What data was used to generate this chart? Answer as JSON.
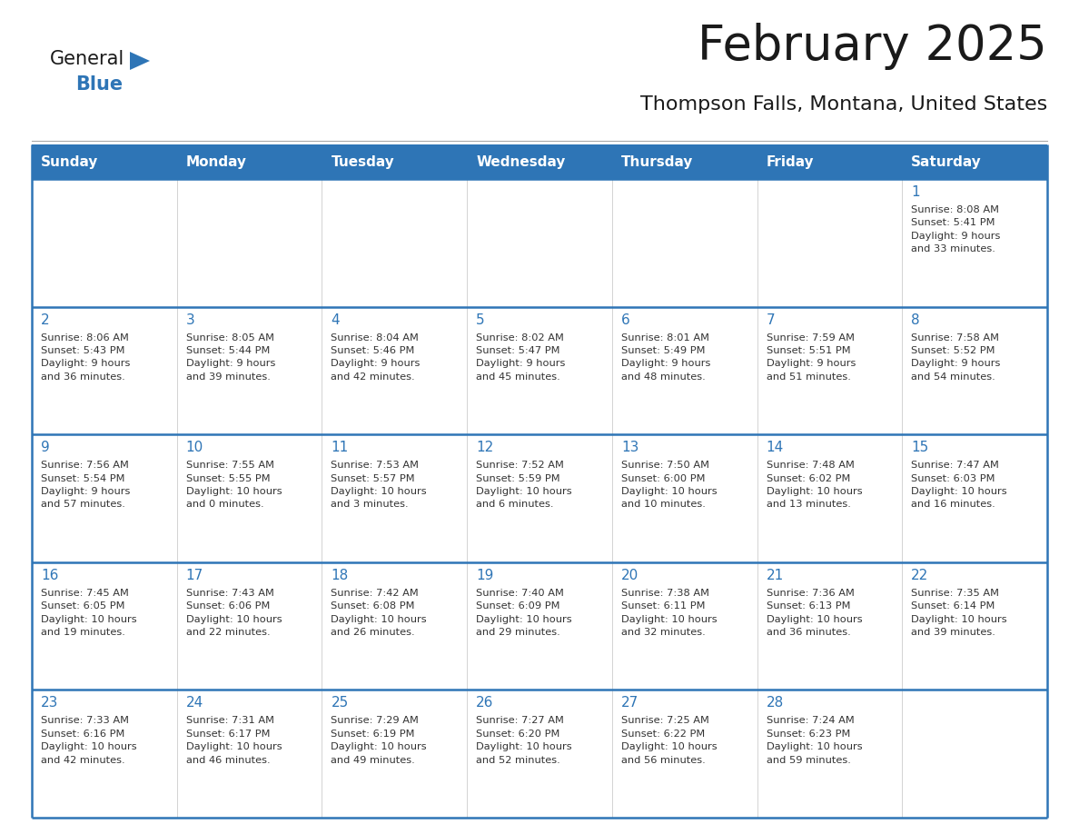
{
  "title": "February 2025",
  "subtitle": "Thompson Falls, Montana, United States",
  "header_bg": "#2E75B6",
  "header_text_color": "#FFFFFF",
  "cell_bg": "#FFFFFF",
  "border_color": "#2E75B6",
  "row_border_color": "#4472A8",
  "day_headers": [
    "Sunday",
    "Monday",
    "Tuesday",
    "Wednesday",
    "Thursday",
    "Friday",
    "Saturday"
  ],
  "title_color": "#1a1a1a",
  "subtitle_color": "#1a1a1a",
  "day_num_color": "#2E75B6",
  "cell_text_color": "#333333",
  "logo_general_color": "#1a1a1a",
  "logo_blue_color": "#2E75B6",
  "weeks": [
    [
      {
        "day": "",
        "info": ""
      },
      {
        "day": "",
        "info": ""
      },
      {
        "day": "",
        "info": ""
      },
      {
        "day": "",
        "info": ""
      },
      {
        "day": "",
        "info": ""
      },
      {
        "day": "",
        "info": ""
      },
      {
        "day": "1",
        "info": "Sunrise: 8:08 AM\nSunset: 5:41 PM\nDaylight: 9 hours\nand 33 minutes."
      }
    ],
    [
      {
        "day": "2",
        "info": "Sunrise: 8:06 AM\nSunset: 5:43 PM\nDaylight: 9 hours\nand 36 minutes."
      },
      {
        "day": "3",
        "info": "Sunrise: 8:05 AM\nSunset: 5:44 PM\nDaylight: 9 hours\nand 39 minutes."
      },
      {
        "day": "4",
        "info": "Sunrise: 8:04 AM\nSunset: 5:46 PM\nDaylight: 9 hours\nand 42 minutes."
      },
      {
        "day": "5",
        "info": "Sunrise: 8:02 AM\nSunset: 5:47 PM\nDaylight: 9 hours\nand 45 minutes."
      },
      {
        "day": "6",
        "info": "Sunrise: 8:01 AM\nSunset: 5:49 PM\nDaylight: 9 hours\nand 48 minutes."
      },
      {
        "day": "7",
        "info": "Sunrise: 7:59 AM\nSunset: 5:51 PM\nDaylight: 9 hours\nand 51 minutes."
      },
      {
        "day": "8",
        "info": "Sunrise: 7:58 AM\nSunset: 5:52 PM\nDaylight: 9 hours\nand 54 minutes."
      }
    ],
    [
      {
        "day": "9",
        "info": "Sunrise: 7:56 AM\nSunset: 5:54 PM\nDaylight: 9 hours\nand 57 minutes."
      },
      {
        "day": "10",
        "info": "Sunrise: 7:55 AM\nSunset: 5:55 PM\nDaylight: 10 hours\nand 0 minutes."
      },
      {
        "day": "11",
        "info": "Sunrise: 7:53 AM\nSunset: 5:57 PM\nDaylight: 10 hours\nand 3 minutes."
      },
      {
        "day": "12",
        "info": "Sunrise: 7:52 AM\nSunset: 5:59 PM\nDaylight: 10 hours\nand 6 minutes."
      },
      {
        "day": "13",
        "info": "Sunrise: 7:50 AM\nSunset: 6:00 PM\nDaylight: 10 hours\nand 10 minutes."
      },
      {
        "day": "14",
        "info": "Sunrise: 7:48 AM\nSunset: 6:02 PM\nDaylight: 10 hours\nand 13 minutes."
      },
      {
        "day": "15",
        "info": "Sunrise: 7:47 AM\nSunset: 6:03 PM\nDaylight: 10 hours\nand 16 minutes."
      }
    ],
    [
      {
        "day": "16",
        "info": "Sunrise: 7:45 AM\nSunset: 6:05 PM\nDaylight: 10 hours\nand 19 minutes."
      },
      {
        "day": "17",
        "info": "Sunrise: 7:43 AM\nSunset: 6:06 PM\nDaylight: 10 hours\nand 22 minutes."
      },
      {
        "day": "18",
        "info": "Sunrise: 7:42 AM\nSunset: 6:08 PM\nDaylight: 10 hours\nand 26 minutes."
      },
      {
        "day": "19",
        "info": "Sunrise: 7:40 AM\nSunset: 6:09 PM\nDaylight: 10 hours\nand 29 minutes."
      },
      {
        "day": "20",
        "info": "Sunrise: 7:38 AM\nSunset: 6:11 PM\nDaylight: 10 hours\nand 32 minutes."
      },
      {
        "day": "21",
        "info": "Sunrise: 7:36 AM\nSunset: 6:13 PM\nDaylight: 10 hours\nand 36 minutes."
      },
      {
        "day": "22",
        "info": "Sunrise: 7:35 AM\nSunset: 6:14 PM\nDaylight: 10 hours\nand 39 minutes."
      }
    ],
    [
      {
        "day": "23",
        "info": "Sunrise: 7:33 AM\nSunset: 6:16 PM\nDaylight: 10 hours\nand 42 minutes."
      },
      {
        "day": "24",
        "info": "Sunrise: 7:31 AM\nSunset: 6:17 PM\nDaylight: 10 hours\nand 46 minutes."
      },
      {
        "day": "25",
        "info": "Sunrise: 7:29 AM\nSunset: 6:19 PM\nDaylight: 10 hours\nand 49 minutes."
      },
      {
        "day": "26",
        "info": "Sunrise: 7:27 AM\nSunset: 6:20 PM\nDaylight: 10 hours\nand 52 minutes."
      },
      {
        "day": "27",
        "info": "Sunrise: 7:25 AM\nSunset: 6:22 PM\nDaylight: 10 hours\nand 56 minutes."
      },
      {
        "day": "28",
        "info": "Sunrise: 7:24 AM\nSunset: 6:23 PM\nDaylight: 10 hours\nand 59 minutes."
      },
      {
        "day": "",
        "info": ""
      }
    ]
  ]
}
